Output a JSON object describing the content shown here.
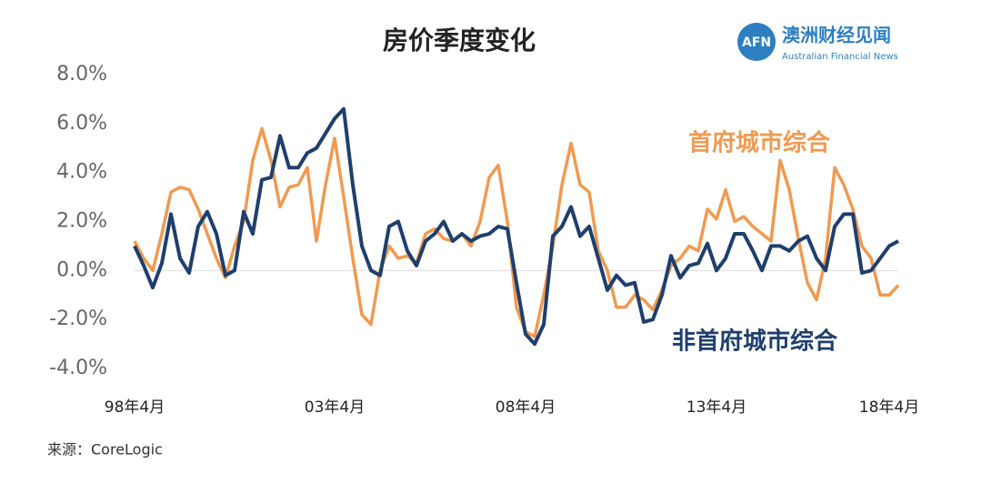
{
  "chart_data": {
    "type": "line",
    "title": "房价季度变化",
    "source": "来源：CoreLogic",
    "brand": {
      "mark": "AFN",
      "name": "澳洲财经见闻",
      "name_en": "Australian Financial News"
    },
    "categories": [
      "98年4月",
      null,
      null,
      null,
      null,
      null,
      null,
      null,
      null,
      null,
      null,
      null,
      null,
      null,
      null,
      null,
      null,
      null,
      null,
      null,
      null,
      null,
      "03年4月",
      null,
      null,
      null,
      null,
      null,
      null,
      null,
      null,
      null,
      null,
      null,
      null,
      null,
      null,
      null,
      null,
      null,
      null,
      null,
      null,
      "08年4月",
      null,
      null,
      null,
      null,
      null,
      null,
      null,
      null,
      null,
      null,
      null,
      null,
      null,
      null,
      null,
      null,
      null,
      null,
      null,
      null,
      "13年4月",
      null,
      null,
      null,
      null,
      null,
      null,
      null,
      null,
      null,
      null,
      null,
      null,
      null,
      null,
      null,
      null,
      null,
      null,
      "18年4月",
      null
    ],
    "series": [
      {
        "name": "首府城市综合",
        "color": "#f09a50",
        "values": [
          1.2,
          0.5,
          0.0,
          1.5,
          3.2,
          3.4,
          3.3,
          2.5,
          1.5,
          0.5,
          -0.3,
          1.0,
          2.0,
          4.5,
          5.8,
          4.5,
          2.6,
          3.4,
          3.5,
          4.2,
          1.2,
          3.5,
          5.4,
          3.0,
          0.5,
          -1.8,
          -2.2,
          0.0,
          1.0,
          0.5,
          0.6,
          0.3,
          1.5,
          1.7,
          1.3,
          1.2,
          1.5,
          1.0,
          2.0,
          3.8,
          4.3,
          2.0,
          -1.5,
          -2.5,
          -2.7,
          -1.0,
          1.0,
          3.5,
          5.2,
          3.5,
          3.2,
          0.8,
          0.0,
          -1.5,
          -1.5,
          -1.0,
          -1.2,
          -1.6,
          -0.8,
          0.2,
          0.5,
          1.0,
          0.8,
          2.5,
          2.1,
          3.3,
          2.0,
          2.2,
          1.8,
          1.5,
          1.2,
          4.5,
          3.3,
          1.3,
          -0.5,
          -1.2,
          0.5,
          4.2,
          3.5,
          2.5,
          1.0,
          0.5,
          -1.0,
          -1.0,
          -0.6
        ]
      },
      {
        "name": "非首府城市综合",
        "color": "#1e3f6e",
        "values": [
          1.0,
          0.2,
          -0.7,
          0.3,
          2.3,
          0.5,
          -0.1,
          1.8,
          2.4,
          1.5,
          -0.2,
          0.0,
          2.4,
          1.5,
          3.7,
          3.8,
          5.5,
          4.2,
          4.2,
          4.8,
          5.0,
          5.6,
          6.2,
          6.6,
          3.5,
          1.0,
          0.0,
          -0.2,
          1.8,
          2.0,
          0.8,
          0.2,
          1.2,
          1.5,
          2.0,
          1.2,
          1.5,
          1.2,
          1.4,
          1.5,
          1.8,
          1.7,
          -0.5,
          -2.6,
          -3.0,
          -2.2,
          1.4,
          1.8,
          2.6,
          1.4,
          1.8,
          0.5,
          -0.8,
          -0.2,
          -0.6,
          -0.5,
          -2.1,
          -2.0,
          -1.0,
          0.6,
          -0.3,
          0.2,
          0.3,
          1.1,
          0.0,
          0.5,
          1.5,
          1.5,
          0.8,
          0.0,
          1.0,
          1.0,
          0.8,
          1.2,
          1.4,
          0.5,
          0.0,
          1.8,
          2.3,
          2.3,
          -0.1,
          0.0,
          0.5,
          1.0,
          1.2
        ]
      }
    ],
    "ylim": [
      -4,
      8
    ],
    "yticks": [
      {
        "value": 8,
        "label": "8.0%"
      },
      {
        "value": 6,
        "label": "6.0%"
      },
      {
        "value": 4,
        "label": "4.0%"
      },
      {
        "value": 2,
        "label": "2.0%"
      },
      {
        "value": 0,
        "label": "0.0%"
      },
      {
        "value": -2,
        "label": "-2.0%"
      },
      {
        "value": -4,
        "label": "-4.0%"
      }
    ],
    "zero_line": true
  }
}
